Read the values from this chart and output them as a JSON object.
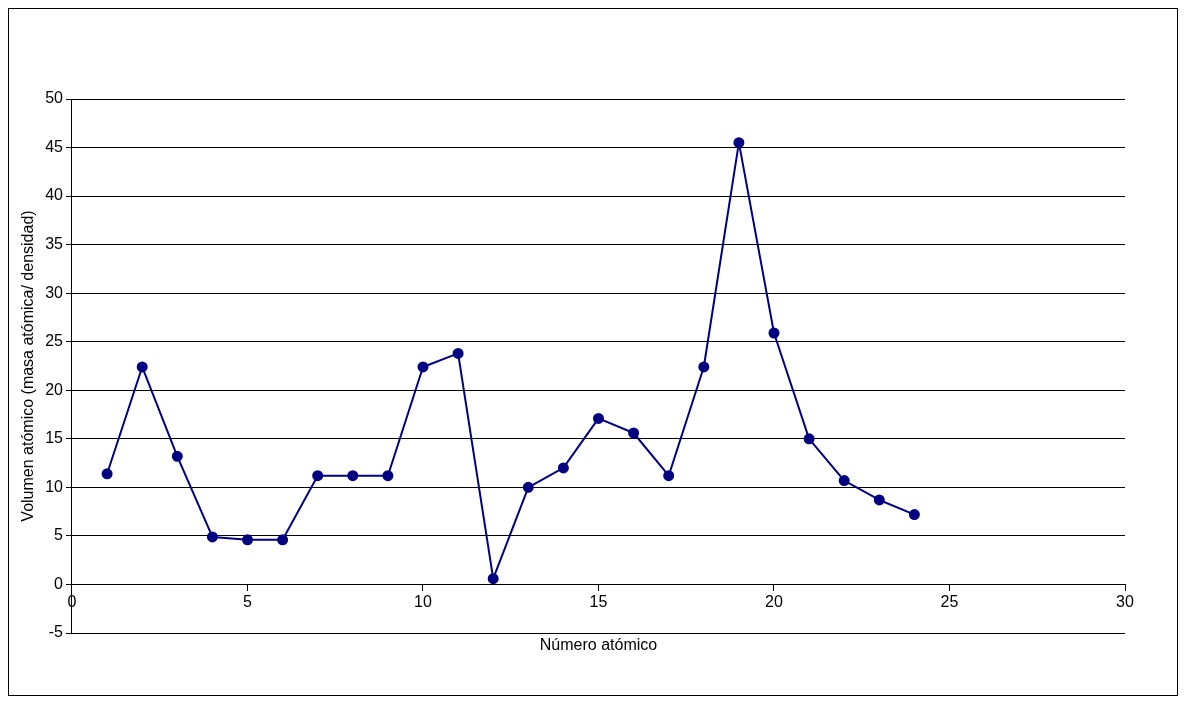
{
  "chart_data": {
    "type": "line",
    "xlabel": "Número atómico",
    "ylabel": "Volumen atómico (masa atómica/ densidad)",
    "series": [
      {
        "color": "#000080",
        "x": [
          1,
          2,
          3,
          4,
          5,
          6,
          7,
          8,
          9,
          10,
          11,
          12,
          13,
          14,
          15,
          16,
          17,
          18,
          19,
          20,
          21,
          22,
          23,
          24
        ],
        "values": [
          11.4,
          22.4,
          13.2,
          4.9,
          4.6,
          4.6,
          11.2,
          11.2,
          11.2,
          22.4,
          23.8,
          0.6,
          10.0,
          12.0,
          17.1,
          15.6,
          11.2,
          22.4,
          45.5,
          25.9,
          15.0,
          10.7,
          8.7,
          7.2
        ]
      }
    ],
    "xlim": [
      0,
      30
    ],
    "xticks": [
      0,
      5,
      10,
      15,
      20,
      25,
      30
    ],
    "ylim": [
      -5,
      50
    ],
    "yticks": [
      -5,
      0,
      5,
      10,
      15,
      20,
      25,
      30,
      35,
      40,
      45,
      50
    ],
    "grid": "y",
    "legend": false,
    "marker": "circle",
    "line_style": "solid"
  }
}
